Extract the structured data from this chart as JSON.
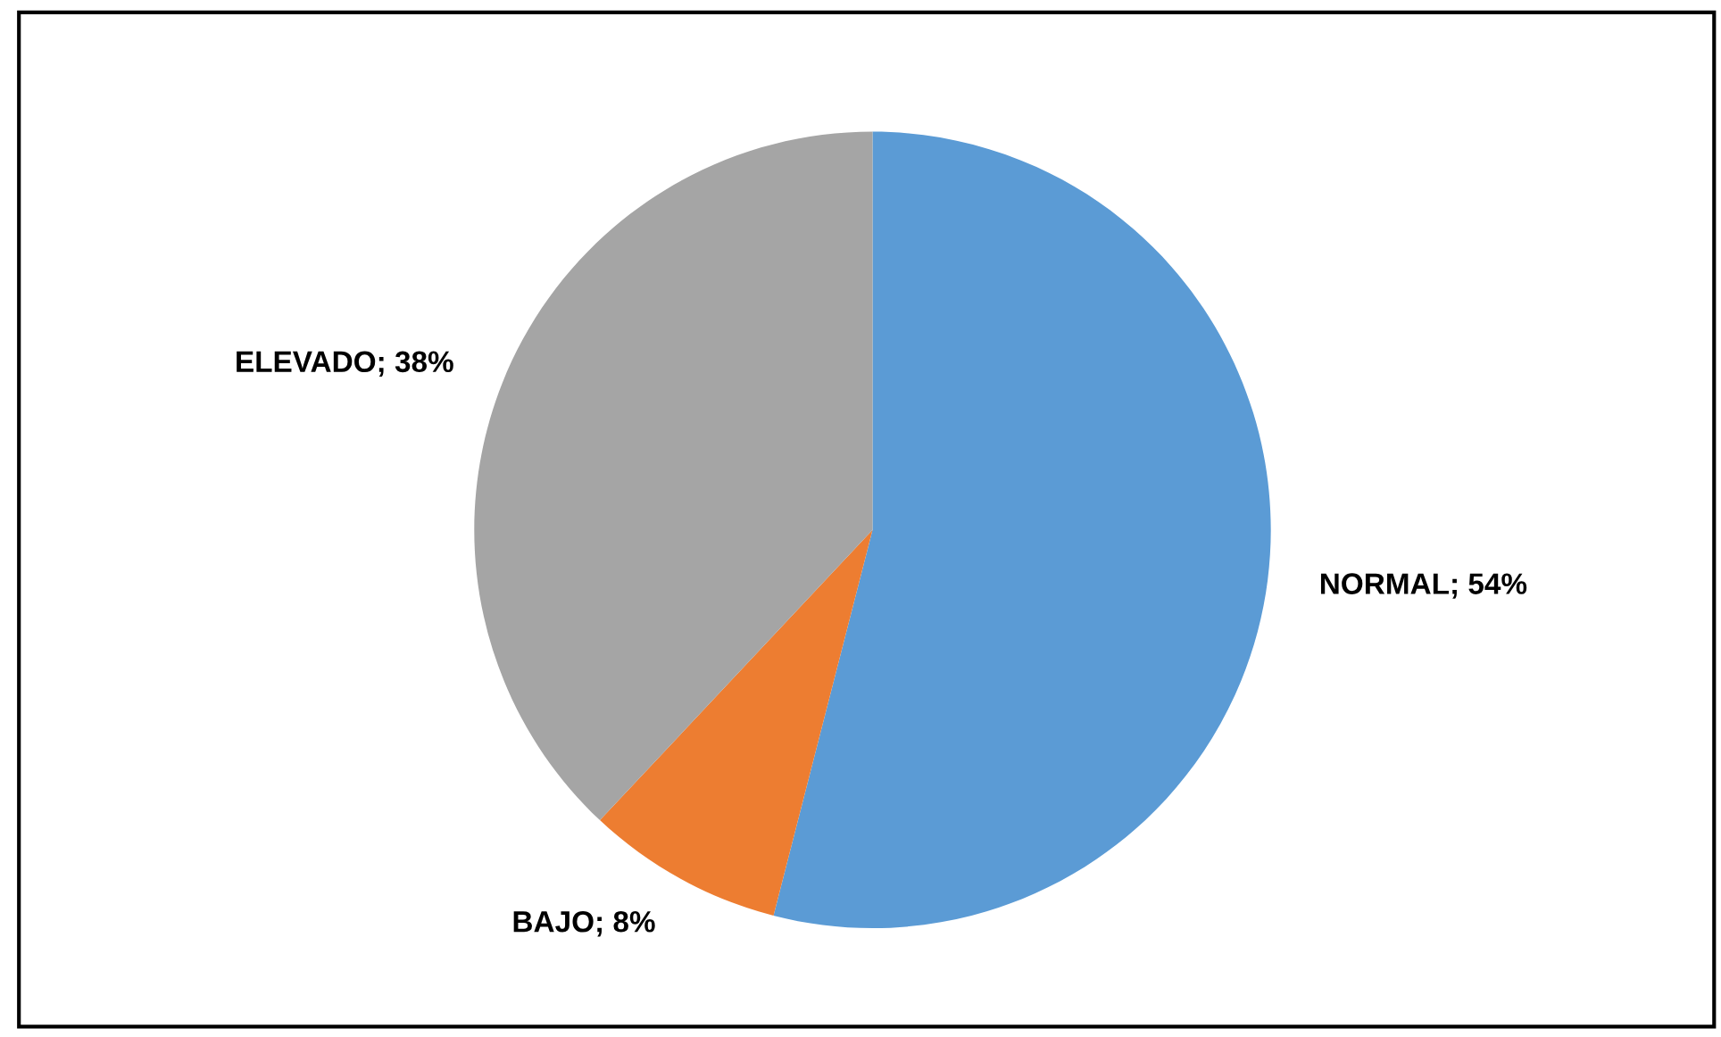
{
  "chart_data": {
    "type": "pie",
    "categories": [
      "NORMAL",
      "BAJO",
      "ELEVADO"
    ],
    "values": [
      54,
      8,
      38
    ],
    "colors": [
      "#5b9bd5",
      "#ed7d31",
      "#a5a5a5"
    ],
    "value_labels": [
      "54%",
      "8%",
      "38%"
    ],
    "legend": false
  }
}
